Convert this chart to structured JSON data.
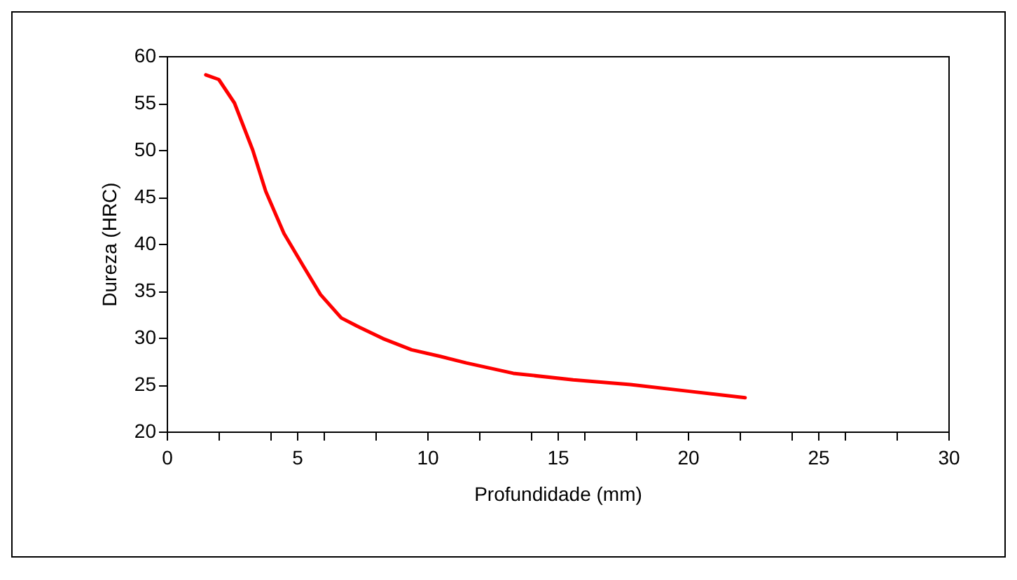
{
  "chart_data": {
    "type": "line",
    "xlabel": "Profundidade (mm)",
    "ylabel": "Dureza (HRC)",
    "x": [
      1.5,
      2.0,
      2.6,
      3.3,
      3.8,
      4.5,
      5.25,
      5.9,
      6.7,
      7.4,
      8.3,
      9.4,
      10.5,
      11.5,
      13.3,
      15.6,
      17.8,
      20.0,
      22.2
    ],
    "series": [
      {
        "color": "#ff0000",
        "values": [
          58.0,
          57.5,
          55.0,
          50.0,
          45.6,
          41.1,
          37.6,
          34.6,
          32.1,
          31.1,
          29.9,
          28.7,
          28.0,
          27.3,
          26.2,
          25.5,
          25.0,
          24.3,
          23.6
        ]
      }
    ],
    "xlim": [
      0,
      30
    ],
    "xticks": [
      0,
      {
        "value": 2,
        "label": null
      },
      {
        "value": 4,
        "label": null
      },
      5,
      {
        "value": 6,
        "label": null
      },
      {
        "value": 8,
        "label": null
      },
      10,
      {
        "value": 12,
        "label": null
      },
      {
        "value": 14,
        "label": null
      },
      15,
      {
        "value": 16,
        "label": null
      },
      {
        "value": 18,
        "label": null
      },
      20,
      {
        "value": 22,
        "label": null
      },
      {
        "value": 24,
        "label": null
      },
      25,
      {
        "value": 26,
        "label": null
      },
      {
        "value": 28,
        "label": null
      },
      30
    ],
    "ylim": [
      20,
      60
    ],
    "yticks": [
      20,
      25,
      30,
      35,
      40,
      45,
      50,
      55,
      60
    ],
    "grid": false,
    "marker": "none",
    "line_style": "solid"
  }
}
